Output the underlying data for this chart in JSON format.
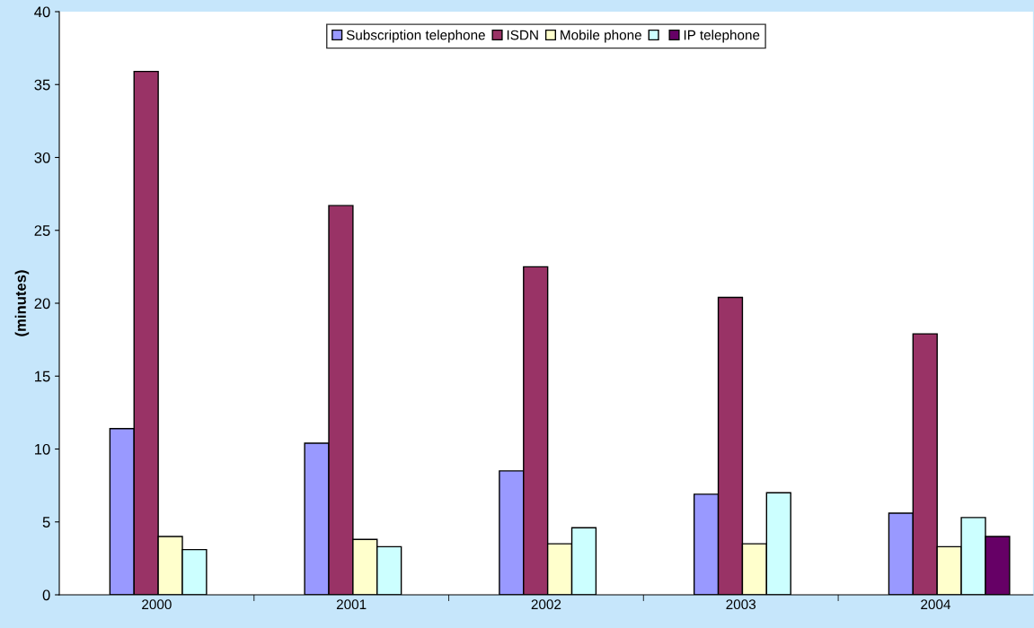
{
  "chart_data": {
    "type": "bar",
    "ylabel": "(minutes)",
    "categories": [
      "2000",
      "2001",
      "2002",
      "2003",
      "2004"
    ],
    "series": [
      {
        "name": "Subscription telephone",
        "color": "#9999ff",
        "values": [
          11.4,
          10.4,
          8.5,
          6.9,
          5.6
        ]
      },
      {
        "name": "ISDN",
        "color": "#993366",
        "values": [
          35.9,
          26.7,
          22.5,
          20.4,
          17.9
        ]
      },
      {
        "name": "Mobile phone",
        "color": "#ffffcc",
        "values": [
          4.0,
          3.8,
          3.5,
          3.5,
          3.3
        ]
      },
      {
        "color": "#ccffff",
        "values": [
          3.1,
          3.3,
          4.6,
          7.0,
          5.3
        ]
      },
      {
        "name": "IP telephone",
        "color": "#660066",
        "values": [
          null,
          null,
          null,
          null,
          4.0
        ]
      }
    ],
    "ylim": [
      0,
      40
    ],
    "yticks": [
      0,
      5,
      10,
      15,
      20,
      25,
      30,
      35,
      40
    ],
    "grid": false,
    "legend": "top"
  }
}
